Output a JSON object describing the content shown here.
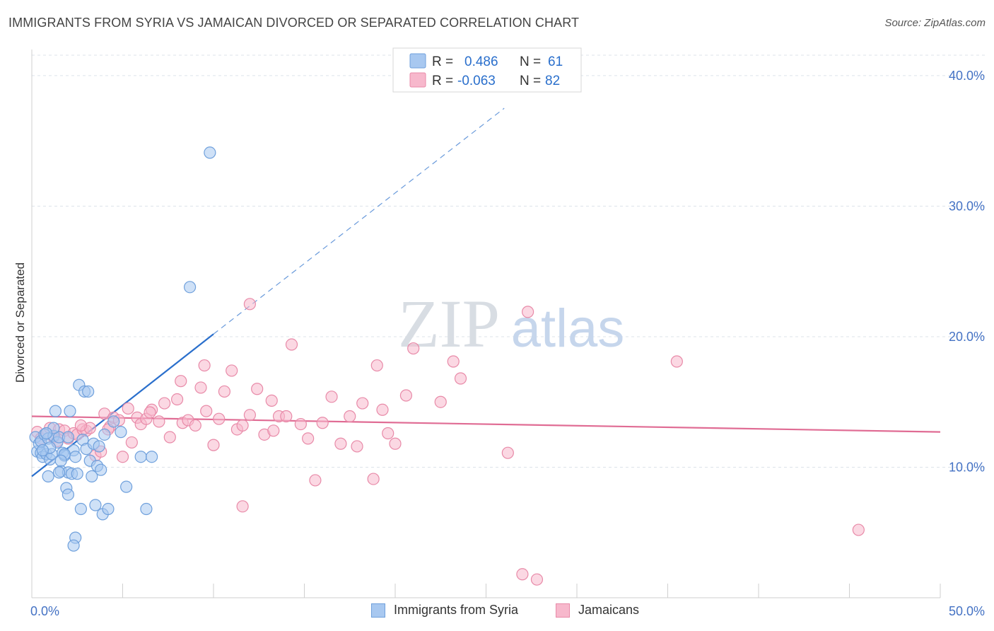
{
  "header": {
    "title": "IMMIGRANTS FROM SYRIA VS JAMAICAN DIVORCED OR SEPARATED CORRELATION CHART",
    "source": "Source: ZipAtlas.com"
  },
  "watermark": {
    "zip": "ZIP",
    "atlas": "atlas"
  },
  "colors": {
    "syria_fill": "#a8c8f0",
    "syria_stroke": "#6fa0dc",
    "syria_line": "#2a6fcc",
    "jamaica_fill": "#f7b8cc",
    "jamaica_stroke": "#e88aa8",
    "jamaica_line": "#e06c94",
    "tick_label": "#4472c4",
    "grid": "#dde3ea"
  },
  "legend": {
    "rows": [
      {
        "r_label": "R =",
        "r_value": "0.486",
        "n_label": "N =",
        "n_value": "61"
      },
      {
        "r_label": "R =",
        "r_value": "-0.063",
        "n_label": "N =",
        "n_value": "82"
      }
    ]
  },
  "chart_data": {
    "type": "scatter",
    "title": "IMMIGRANTS FROM SYRIA VS JAMAICAN DIVORCED OR SEPARATED CORRELATION CHART",
    "xlabel": "",
    "ylabel": "Divorced or Separated",
    "xlim": [
      0,
      50
    ],
    "ylim": [
      0,
      42
    ],
    "x_tick_labels": [
      "0.0%",
      "50.0%"
    ],
    "y_ticks": [
      10,
      20,
      30,
      40
    ],
    "y_tick_labels": [
      "10.0%",
      "20.0%",
      "30.0%",
      "40.0%"
    ],
    "grid": true,
    "legend_position": "top-center",
    "series": [
      {
        "name": "Immigrants from Syria",
        "r": 0.486,
        "n": 61,
        "trend": {
          "x": [
            0.0,
            10.0
          ],
          "y": [
            9.3,
            20.2
          ],
          "dashed_extension_to": [
            26.0,
            37.5
          ]
        },
        "points": [
          [
            0.2,
            12.3
          ],
          [
            0.3,
            11.2
          ],
          [
            0.4,
            11.8
          ],
          [
            0.5,
            11.1
          ],
          [
            0.5,
            12.0
          ],
          [
            0.6,
            10.8
          ],
          [
            0.7,
            12.5
          ],
          [
            0.8,
            11.0
          ],
          [
            0.9,
            12.2
          ],
          [
            1.0,
            10.6
          ],
          [
            1.1,
            11.0
          ],
          [
            1.2,
            12.4
          ],
          [
            1.3,
            14.3
          ],
          [
            1.4,
            11.9
          ],
          [
            1.5,
            12.3
          ],
          [
            1.6,
            9.7
          ],
          [
            1.7,
            11.1
          ],
          [
            1.8,
            10.9
          ],
          [
            1.9,
            8.4
          ],
          [
            2.0,
            9.6
          ],
          [
            2.0,
            7.9
          ],
          [
            2.1,
            14.3
          ],
          [
            2.2,
            9.5
          ],
          [
            2.3,
            11.3
          ],
          [
            2.4,
            10.8
          ],
          [
            2.5,
            9.5
          ],
          [
            2.6,
            16.3
          ],
          [
            2.7,
            6.8
          ],
          [
            2.8,
            12.1
          ],
          [
            2.9,
            15.8
          ],
          [
            3.0,
            11.4
          ],
          [
            3.1,
            15.8
          ],
          [
            3.2,
            10.5
          ],
          [
            3.3,
            9.3
          ],
          [
            3.4,
            11.8
          ],
          [
            3.5,
            7.1
          ],
          [
            3.6,
            10.1
          ],
          [
            3.7,
            11.6
          ],
          [
            3.8,
            9.8
          ],
          [
            3.9,
            6.4
          ],
          [
            4.0,
            12.5
          ],
          [
            4.2,
            6.8
          ],
          [
            4.5,
            13.5
          ],
          [
            4.9,
            12.7
          ],
          [
            5.2,
            8.5
          ],
          [
            6.0,
            10.8
          ],
          [
            6.6,
            10.8
          ],
          [
            6.3,
            6.8
          ],
          [
            2.4,
            4.6
          ],
          [
            2.3,
            4.0
          ],
          [
            1.0,
            11.5
          ],
          [
            1.5,
            9.6
          ],
          [
            1.8,
            11.0
          ],
          [
            2.0,
            12.3
          ],
          [
            1.2,
            13.0
          ],
          [
            0.8,
            12.6
          ],
          [
            0.6,
            11.3
          ],
          [
            0.9,
            9.3
          ],
          [
            8.7,
            23.8
          ],
          [
            9.8,
            34.1
          ],
          [
            1.6,
            10.5
          ]
        ]
      },
      {
        "name": "Jamaicans",
        "r": -0.063,
        "n": 82,
        "trend": {
          "x": [
            0.0,
            50.0
          ],
          "y": [
            13.9,
            12.7
          ]
        },
        "points": [
          [
            0.3,
            12.7
          ],
          [
            0.5,
            12.2
          ],
          [
            0.8,
            12.6
          ],
          [
            1.0,
            13.0
          ],
          [
            1.2,
            12.3
          ],
          [
            1.5,
            12.9
          ],
          [
            1.8,
            12.8
          ],
          [
            2.0,
            12.2
          ],
          [
            2.3,
            12.6
          ],
          [
            2.5,
            12.5
          ],
          [
            2.8,
            12.9
          ],
          [
            3.0,
            12.8
          ],
          [
            3.2,
            13.0
          ],
          [
            3.5,
            10.9
          ],
          [
            3.8,
            11.2
          ],
          [
            4.0,
            14.1
          ],
          [
            4.3,
            13.1
          ],
          [
            4.5,
            13.8
          ],
          [
            4.8,
            13.6
          ],
          [
            5.0,
            10.8
          ],
          [
            5.3,
            14.5
          ],
          [
            5.5,
            11.9
          ],
          [
            5.8,
            13.8
          ],
          [
            6.0,
            13.3
          ],
          [
            6.3,
            13.7
          ],
          [
            6.6,
            14.4
          ],
          [
            7.0,
            13.5
          ],
          [
            7.3,
            14.9
          ],
          [
            7.6,
            12.3
          ],
          [
            8.0,
            15.2
          ],
          [
            8.3,
            13.4
          ],
          [
            8.6,
            13.6
          ],
          [
            9.0,
            13.2
          ],
          [
            9.3,
            16.1
          ],
          [
            9.6,
            14.3
          ],
          [
            10.0,
            11.7
          ],
          [
            10.3,
            13.7
          ],
          [
            10.6,
            15.8
          ],
          [
            11.0,
            17.4
          ],
          [
            11.3,
            12.9
          ],
          [
            11.6,
            13.2
          ],
          [
            12.0,
            14.0
          ],
          [
            12.4,
            16.0
          ],
          [
            12.8,
            12.5
          ],
          [
            13.2,
            15.1
          ],
          [
            13.6,
            13.9
          ],
          [
            14.0,
            13.9
          ],
          [
            14.3,
            19.4
          ],
          [
            14.8,
            13.3
          ],
          [
            15.2,
            12.2
          ],
          [
            15.6,
            9.0
          ],
          [
            16.0,
            13.4
          ],
          [
            16.5,
            15.4
          ],
          [
            17.0,
            11.8
          ],
          [
            17.5,
            13.9
          ],
          [
            17.9,
            11.6
          ],
          [
            18.2,
            14.9
          ],
          [
            18.8,
            9.1
          ],
          [
            19.0,
            17.8
          ],
          [
            19.3,
            14.4
          ],
          [
            19.6,
            12.6
          ],
          [
            20.0,
            11.8
          ],
          [
            20.6,
            15.5
          ],
          [
            21.0,
            19.1
          ],
          [
            22.5,
            15.0
          ],
          [
            23.2,
            18.1
          ],
          [
            23.6,
            16.8
          ],
          [
            26.2,
            11.1
          ],
          [
            27.0,
            1.8
          ],
          [
            27.3,
            21.9
          ],
          [
            35.5,
            18.1
          ],
          [
            45.5,
            5.2
          ],
          [
            12.0,
            22.5
          ],
          [
            11.6,
            7.0
          ],
          [
            8.2,
            16.6
          ],
          [
            9.5,
            17.8
          ],
          [
            6.5,
            14.2
          ],
          [
            4.2,
            12.9
          ],
          [
            13.3,
            12.8
          ],
          [
            2.7,
            13.2
          ],
          [
            1.4,
            12.0
          ],
          [
            27.8,
            1.4
          ]
        ]
      }
    ]
  }
}
